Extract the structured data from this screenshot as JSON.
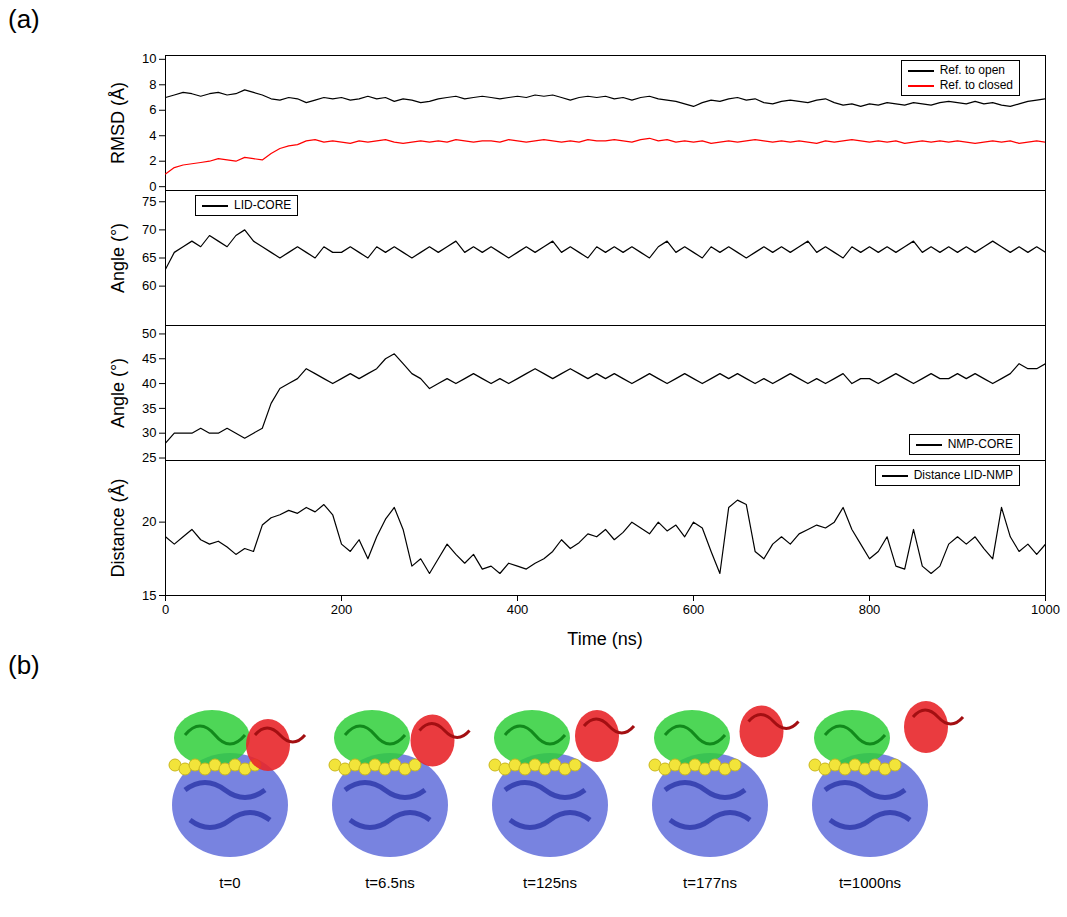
{
  "figure": {
    "panel_labels": [
      "(a)",
      "(b)"
    ]
  },
  "snapshots": {
    "labels": [
      "t=0",
      "t=6.5ns",
      "t=125ns",
      "t=177ns",
      "t=1000ns"
    ]
  },
  "chart_data": [
    {
      "type": "line",
      "y_label": "RMSD (Å)",
      "legend": "top-right",
      "tick_labels": "y",
      "xlim": [
        0,
        1000
      ],
      "xticks": [
        0,
        200,
        400,
        600,
        800,
        1000
      ],
      "ylim": [
        -0.3,
        10.3
      ],
      "yticks": [
        0,
        2,
        4,
        6,
        8,
        10
      ],
      "x": [
        0,
        10,
        20,
        30,
        40,
        50,
        60,
        70,
        80,
        90,
        100,
        110,
        120,
        130,
        140,
        150,
        160,
        170,
        180,
        190,
        200,
        210,
        220,
        230,
        240,
        250,
        260,
        270,
        280,
        290,
        300,
        310,
        320,
        330,
        340,
        350,
        360,
        370,
        380,
        390,
        400,
        410,
        420,
        430,
        440,
        450,
        460,
        470,
        480,
        490,
        500,
        510,
        520,
        530,
        540,
        550,
        560,
        570,
        580,
        590,
        600,
        610,
        620,
        630,
        640,
        650,
        660,
        670,
        680,
        690,
        700,
        710,
        720,
        730,
        740,
        750,
        760,
        770,
        780,
        790,
        800,
        810,
        820,
        830,
        840,
        850,
        860,
        870,
        880,
        890,
        900,
        910,
        920,
        930,
        940,
        950,
        960,
        970,
        980,
        990,
        1000
      ],
      "series": [
        {
          "name": "Ref. to open",
          "color": "#000000",
          "values": [
            7.0,
            7.2,
            7.4,
            7.3,
            7.1,
            7.3,
            7.4,
            7.2,
            7.3,
            7.6,
            7.4,
            7.2,
            6.9,
            6.8,
            7.0,
            6.9,
            6.6,
            6.8,
            7.0,
            6.9,
            7.0,
            6.8,
            6.9,
            7.1,
            6.9,
            7.0,
            6.7,
            6.9,
            6.8,
            6.6,
            6.7,
            6.9,
            7.0,
            7.1,
            6.9,
            7.0,
            7.1,
            7.0,
            6.9,
            7.0,
            7.1,
            7.0,
            7.2,
            7.1,
            7.2,
            7.0,
            6.8,
            7.0,
            7.1,
            7.0,
            7.1,
            6.9,
            7.0,
            6.8,
            7.0,
            7.1,
            6.9,
            6.8,
            6.7,
            6.5,
            6.3,
            6.6,
            6.8,
            6.7,
            6.9,
            7.0,
            6.8,
            6.9,
            6.6,
            6.5,
            6.7,
            6.8,
            6.7,
            6.6,
            6.8,
            6.9,
            6.6,
            6.4,
            6.5,
            6.3,
            6.5,
            6.4,
            6.6,
            6.5,
            6.4,
            6.6,
            6.5,
            6.4,
            6.6,
            6.7,
            6.6,
            6.5,
            6.7,
            6.5,
            6.6,
            6.4,
            6.3,
            6.5,
            6.7,
            6.8,
            6.9
          ]
        },
        {
          "name": "Ref. to closed",
          "color": "#ff0000",
          "values": [
            1.0,
            1.5,
            1.7,
            1.8,
            1.9,
            2.0,
            2.2,
            2.1,
            2.0,
            2.3,
            2.2,
            2.1,
            2.6,
            3.0,
            3.2,
            3.3,
            3.6,
            3.7,
            3.5,
            3.6,
            3.5,
            3.4,
            3.6,
            3.5,
            3.6,
            3.7,
            3.5,
            3.4,
            3.5,
            3.6,
            3.5,
            3.6,
            3.5,
            3.7,
            3.6,
            3.5,
            3.6,
            3.6,
            3.5,
            3.7,
            3.6,
            3.5,
            3.6,
            3.7,
            3.6,
            3.5,
            3.6,
            3.5,
            3.7,
            3.6,
            3.6,
            3.7,
            3.6,
            3.5,
            3.7,
            3.8,
            3.6,
            3.7,
            3.5,
            3.6,
            3.5,
            3.6,
            3.4,
            3.5,
            3.6,
            3.5,
            3.6,
            3.7,
            3.6,
            3.5,
            3.6,
            3.5,
            3.6,
            3.5,
            3.4,
            3.6,
            3.5,
            3.6,
            3.7,
            3.6,
            3.5,
            3.6,
            3.5,
            3.6,
            3.4,
            3.5,
            3.6,
            3.5,
            3.6,
            3.5,
            3.6,
            3.5,
            3.4,
            3.5,
            3.6,
            3.5,
            3.6,
            3.4,
            3.5,
            3.6,
            3.5
          ]
        }
      ]
    },
    {
      "type": "line",
      "y_label": "Angle (°)",
      "legend": "top-left",
      "tick_labels": "y",
      "xlim": [
        0,
        1000
      ],
      "xticks": [
        0,
        200,
        400,
        600,
        800,
        1000
      ],
      "ylim": [
        53,
        77
      ],
      "yticks": [
        60,
        65,
        70,
        75
      ],
      "x": [
        0,
        10,
        20,
        30,
        40,
        50,
        60,
        70,
        80,
        90,
        100,
        110,
        120,
        130,
        140,
        150,
        160,
        170,
        180,
        190,
        200,
        210,
        220,
        230,
        240,
        250,
        260,
        270,
        280,
        290,
        300,
        310,
        320,
        330,
        340,
        350,
        360,
        370,
        380,
        390,
        400,
        410,
        420,
        430,
        440,
        450,
        460,
        470,
        480,
        490,
        500,
        510,
        520,
        530,
        540,
        550,
        560,
        570,
        580,
        590,
        600,
        610,
        620,
        630,
        640,
        650,
        660,
        670,
        680,
        690,
        700,
        710,
        720,
        730,
        740,
        750,
        760,
        770,
        780,
        790,
        800,
        810,
        820,
        830,
        840,
        850,
        860,
        870,
        880,
        890,
        900,
        910,
        920,
        930,
        940,
        950,
        960,
        970,
        980,
        990,
        1000
      ],
      "series": [
        {
          "name": "LID-CORE",
          "color": "#000000",
          "values": [
            63,
            66,
            67,
            68,
            67,
            69,
            68,
            67,
            69,
            70,
            68,
            67,
            66,
            65,
            66,
            67,
            66,
            65,
            67,
            66,
            66,
            67,
            66,
            65,
            67,
            66,
            67,
            66,
            65,
            66,
            67,
            66,
            67,
            68,
            66,
            67,
            66,
            67,
            66,
            65,
            66,
            67,
            66,
            67,
            68,
            66,
            67,
            66,
            65,
            67,
            66,
            67,
            66,
            67,
            66,
            65,
            67,
            68,
            66,
            67,
            66,
            65,
            67,
            66,
            67,
            66,
            65,
            66,
            67,
            66,
            67,
            66,
            67,
            68,
            66,
            67,
            66,
            65,
            67,
            66,
            67,
            66,
            67,
            66,
            67,
            68,
            66,
            67,
            66,
            67,
            66,
            67,
            66,
            67,
            68,
            67,
            66,
            67,
            66,
            67,
            66
          ]
        }
      ]
    },
    {
      "type": "line",
      "y_label": "Angle (°)",
      "legend": "bottom-right",
      "tick_labels": "y",
      "xlim": [
        0,
        1000
      ],
      "xticks": [
        0,
        200,
        400,
        600,
        800,
        1000
      ],
      "ylim": [
        24.5,
        51.7
      ],
      "yticks": [
        25,
        30,
        35,
        40,
        45,
        50
      ],
      "x": [
        0,
        10,
        20,
        30,
        40,
        50,
        60,
        70,
        80,
        90,
        100,
        110,
        120,
        130,
        140,
        150,
        160,
        170,
        180,
        190,
        200,
        210,
        220,
        230,
        240,
        250,
        260,
        270,
        280,
        290,
        300,
        310,
        320,
        330,
        340,
        350,
        360,
        370,
        380,
        390,
        400,
        410,
        420,
        430,
        440,
        450,
        460,
        470,
        480,
        490,
        500,
        510,
        520,
        530,
        540,
        550,
        560,
        570,
        580,
        590,
        600,
        610,
        620,
        630,
        640,
        650,
        660,
        670,
        680,
        690,
        700,
        710,
        720,
        730,
        740,
        750,
        760,
        770,
        780,
        790,
        800,
        810,
        820,
        830,
        840,
        850,
        860,
        870,
        880,
        890,
        900,
        910,
        920,
        930,
        940,
        950,
        960,
        970,
        980,
        990,
        1000
      ],
      "series": [
        {
          "name": "NMP-CORE",
          "color": "#000000",
          "values": [
            28,
            30,
            30,
            30,
            31,
            30,
            30,
            31,
            30,
            29,
            30,
            31,
            36,
            39,
            40,
            41,
            43,
            42,
            41,
            40,
            41,
            42,
            41,
            42,
            43,
            45,
            46,
            44,
            42,
            41,
            39,
            40,
            41,
            40,
            41,
            42,
            41,
            40,
            41,
            40,
            41,
            42,
            43,
            42,
            41,
            42,
            43,
            42,
            41,
            42,
            41,
            42,
            41,
            40,
            41,
            42,
            41,
            40,
            41,
            42,
            41,
            40,
            41,
            42,
            41,
            42,
            41,
            40,
            41,
            40,
            41,
            42,
            41,
            40,
            41,
            40,
            41,
            42,
            40,
            41,
            41,
            40,
            41,
            42,
            41,
            40,
            41,
            42,
            41,
            41,
            42,
            41,
            42,
            41,
            40,
            41,
            42,
            44,
            43,
            43,
            44
          ]
        }
      ]
    },
    {
      "type": "line",
      "y_label": "Distance (Å)",
      "x_label": "Time (ns)",
      "legend": "top-right",
      "xlim": [
        0,
        1000
      ],
      "xticks": [
        0,
        200,
        400,
        600,
        800,
        1000
      ],
      "ylim": [
        15,
        24.2
      ],
      "yticks": [
        15,
        20
      ],
      "x": [
        0,
        10,
        20,
        30,
        40,
        50,
        60,
        70,
        80,
        90,
        100,
        110,
        120,
        130,
        140,
        150,
        160,
        170,
        180,
        190,
        200,
        210,
        220,
        230,
        240,
        250,
        260,
        270,
        280,
        290,
        300,
        310,
        320,
        330,
        340,
        350,
        360,
        370,
        380,
        390,
        400,
        410,
        420,
        430,
        440,
        450,
        460,
        470,
        480,
        490,
        500,
        510,
        520,
        530,
        540,
        550,
        560,
        570,
        580,
        590,
        600,
        610,
        620,
        630,
        640,
        650,
        660,
        670,
        680,
        690,
        700,
        710,
        720,
        730,
        740,
        750,
        760,
        770,
        780,
        790,
        800,
        810,
        820,
        830,
        840,
        850,
        860,
        870,
        880,
        890,
        900,
        910,
        920,
        930,
        940,
        950,
        960,
        970,
        980,
        990,
        1000
      ],
      "series": [
        {
          "name": "Distance LID-NMP",
          "color": "#000000",
          "values": [
            19.0,
            18.5,
            19.0,
            19.5,
            18.8,
            18.5,
            18.7,
            18.3,
            17.8,
            18.2,
            18.0,
            19.8,
            20.3,
            20.5,
            20.8,
            20.6,
            21.0,
            20.7,
            21.2,
            20.5,
            18.5,
            18.0,
            18.8,
            17.5,
            19.0,
            20.2,
            21.0,
            19.5,
            17.0,
            17.5,
            16.5,
            17.5,
            18.5,
            17.8,
            17.2,
            17.8,
            16.8,
            17.0,
            16.5,
            17.2,
            17.0,
            16.8,
            17.2,
            17.5,
            18.0,
            18.8,
            18.2,
            18.6,
            19.2,
            19.0,
            19.5,
            18.8,
            19.3,
            20.0,
            19.6,
            19.2,
            20.0,
            19.4,
            19.8,
            19.0,
            20.0,
            19.6,
            18.0,
            16.5,
            21.0,
            21.5,
            21.2,
            18.0,
            17.5,
            18.5,
            19.0,
            18.5,
            19.2,
            19.5,
            19.8,
            19.6,
            20.0,
            21.0,
            19.5,
            18.5,
            17.5,
            18.0,
            19.0,
            17.0,
            16.8,
            19.5,
            17.0,
            16.5,
            17.0,
            18.5,
            19.0,
            18.5,
            19.0,
            18.2,
            17.5,
            21.0,
            19.0,
            18.0,
            18.5,
            17.8,
            18.5
          ]
        }
      ]
    }
  ]
}
